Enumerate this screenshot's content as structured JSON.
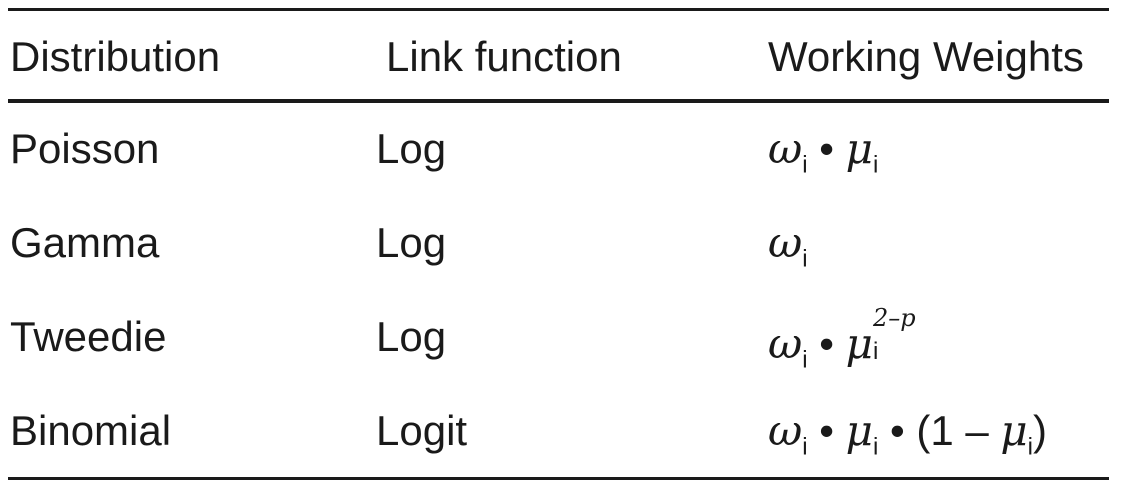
{
  "header": {
    "distribution": "Distribution",
    "link_function": "Link function",
    "working_weights": "Working Weights"
  },
  "rows": [
    {
      "distribution": "Poisson",
      "link": "Log",
      "weight": {
        "omega": "ω",
        "sub_i": "i",
        "dot": " • ",
        "mu": "μ",
        "sub_i2": "i"
      }
    },
    {
      "distribution": "Gamma",
      "link": "Log",
      "weight": {
        "omega": "ω",
        "sub_i": "i"
      }
    },
    {
      "distribution": "Tweedie",
      "link": "Log",
      "weight": {
        "omega": "ω",
        "sub_i": "i",
        "dot": " • ",
        "mu": "μ",
        "sub_i2": "i",
        "sup": "2–p"
      }
    },
    {
      "distribution": "Binomial",
      "link": "Logit",
      "weight": {
        "omega": "ω",
        "sub_i": "i",
        "dot": " • ",
        "mu": "μ",
        "sub_i2": "i",
        "dot2": " • ",
        "open": "(1 – ",
        "mu2": "μ",
        "sub_i3": "i",
        "close": ")"
      }
    }
  ]
}
